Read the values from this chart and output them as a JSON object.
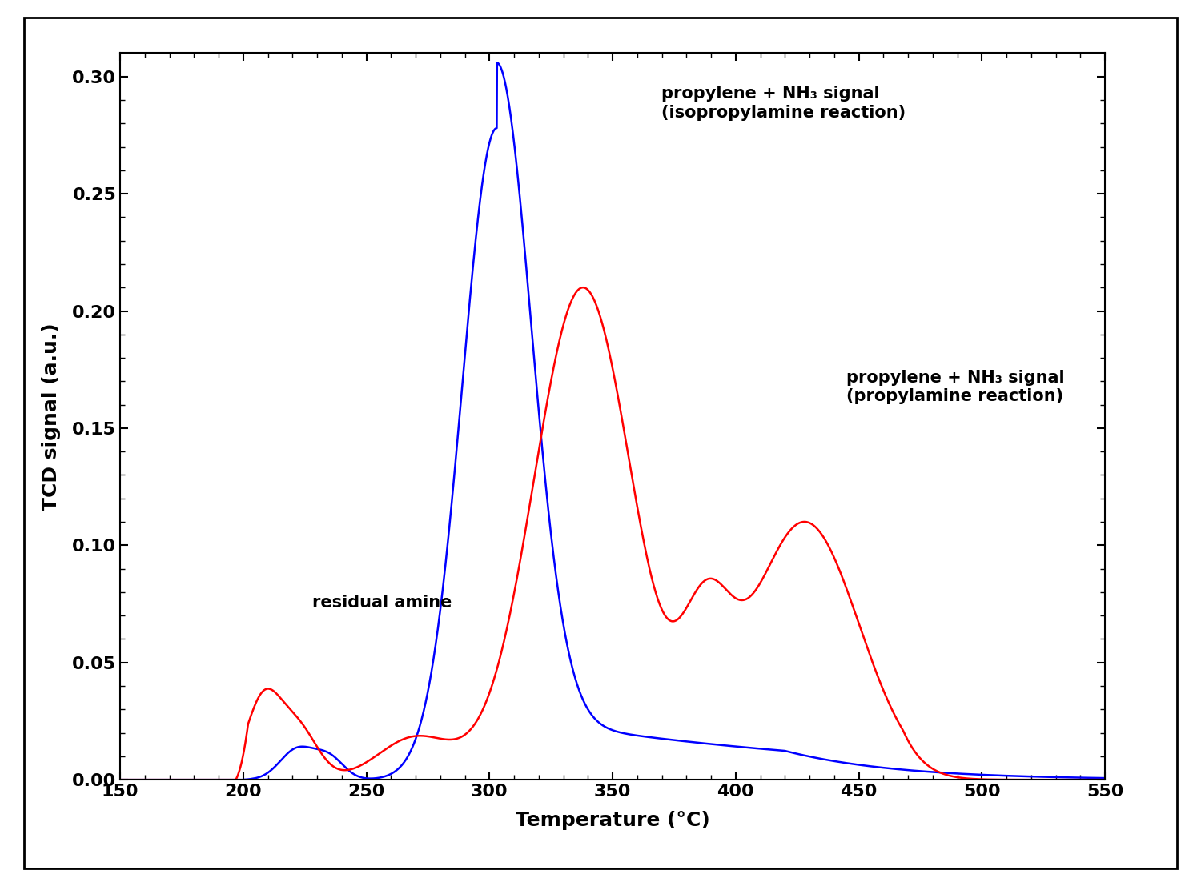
{
  "title": "",
  "xlabel": "Temperature (°C)",
  "ylabel": "TCD signal (a.u.)",
  "xlim": [
    150,
    550
  ],
  "ylim": [
    0,
    0.31
  ],
  "xticks": [
    150,
    200,
    250,
    300,
    350,
    400,
    450,
    500,
    550
  ],
  "yticks": [
    0,
    0.05,
    0.1,
    0.15,
    0.2,
    0.25,
    0.3
  ],
  "blue_color": "#0000FF",
  "red_color": "#FF0000",
  "background_color": "#FFFFFF",
  "outer_border_color": "#000000",
  "annotation_blue": "propylene + NH₃ signal\n(isopropylamine reaction)",
  "annotation_red": "propylene + NH₃ signal\n(propylamine reaction)",
  "annotation_residual": "residual amine",
  "fontsize_ticks": 16,
  "fontsize_labels": 18,
  "fontsize_annotations": 15
}
